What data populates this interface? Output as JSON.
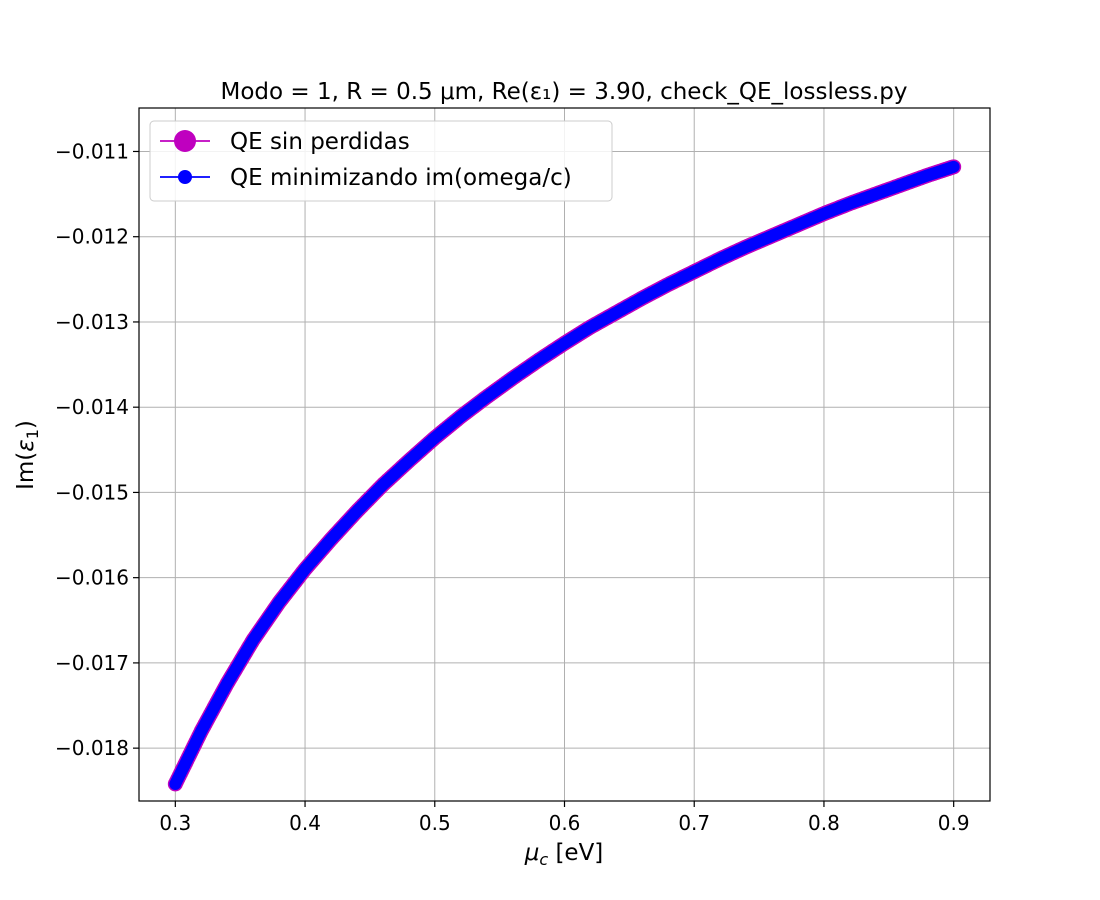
{
  "chart_data": {
    "type": "line",
    "title": "Modo = 1, R = 0.5 μm, Re(ε₁) = 3.90, check_QE_lossless.py",
    "xlabel": "μ_c [eV]",
    "ylabel": "Im(ε₁)",
    "xlim": [
      0.272,
      0.928
    ],
    "ylim": [
      -0.01862,
      -0.01049
    ],
    "grid": true,
    "legend_position": "top-left",
    "x_ticks": [
      0.3,
      0.4,
      0.5,
      0.6,
      0.7,
      0.8,
      0.9
    ],
    "x_tick_labels": [
      "0.3",
      "0.4",
      "0.5",
      "0.6",
      "0.7",
      "0.8",
      "0.9"
    ],
    "y_ticks": [
      -0.011,
      -0.012,
      -0.013,
      -0.014,
      -0.015,
      -0.016,
      -0.017,
      -0.018
    ],
    "y_tick_labels": [
      "−0.011",
      "−0.012",
      "−0.013",
      "−0.014",
      "−0.015",
      "−0.016",
      "−0.017",
      "−0.018"
    ],
    "x": [
      0.3,
      0.32,
      0.34,
      0.36,
      0.38,
      0.4,
      0.42,
      0.44,
      0.46,
      0.48,
      0.5,
      0.52,
      0.54,
      0.56,
      0.58,
      0.6,
      0.62,
      0.64,
      0.66,
      0.68,
      0.7,
      0.72,
      0.74,
      0.76,
      0.78,
      0.8,
      0.82,
      0.84,
      0.86,
      0.88,
      0.9
    ],
    "series": [
      {
        "name": "QE sin perdidas",
        "color": "#bf00bf",
        "marker": "circle-large",
        "y": [
          -0.01842,
          -0.0178,
          -0.01724,
          -0.01673,
          -0.01629,
          -0.0159,
          -0.01555,
          -0.01522,
          -0.01491,
          -0.01463,
          -0.01436,
          -0.01411,
          -0.01388,
          -0.01366,
          -0.01345,
          -0.01325,
          -0.01306,
          -0.01289,
          -0.01272,
          -0.01256,
          -0.01241,
          -0.01226,
          -0.01212,
          -0.01199,
          -0.01186,
          -0.01173,
          -0.01161,
          -0.0115,
          -0.01139,
          -0.01128,
          -0.01118
        ]
      },
      {
        "name": "QE minimizando im(omega/c)",
        "color": "#0000ff",
        "marker": "circle",
        "y": [
          -0.01842,
          -0.0178,
          -0.01724,
          -0.01673,
          -0.01629,
          -0.0159,
          -0.01555,
          -0.01522,
          -0.01491,
          -0.01463,
          -0.01436,
          -0.01411,
          -0.01388,
          -0.01366,
          -0.01345,
          -0.01325,
          -0.01306,
          -0.01289,
          -0.01272,
          -0.01256,
          -0.01241,
          -0.01226,
          -0.01212,
          -0.01199,
          -0.01186,
          -0.01173,
          -0.01161,
          -0.0115,
          -0.01139,
          -0.01128,
          -0.01118
        ]
      }
    ]
  }
}
